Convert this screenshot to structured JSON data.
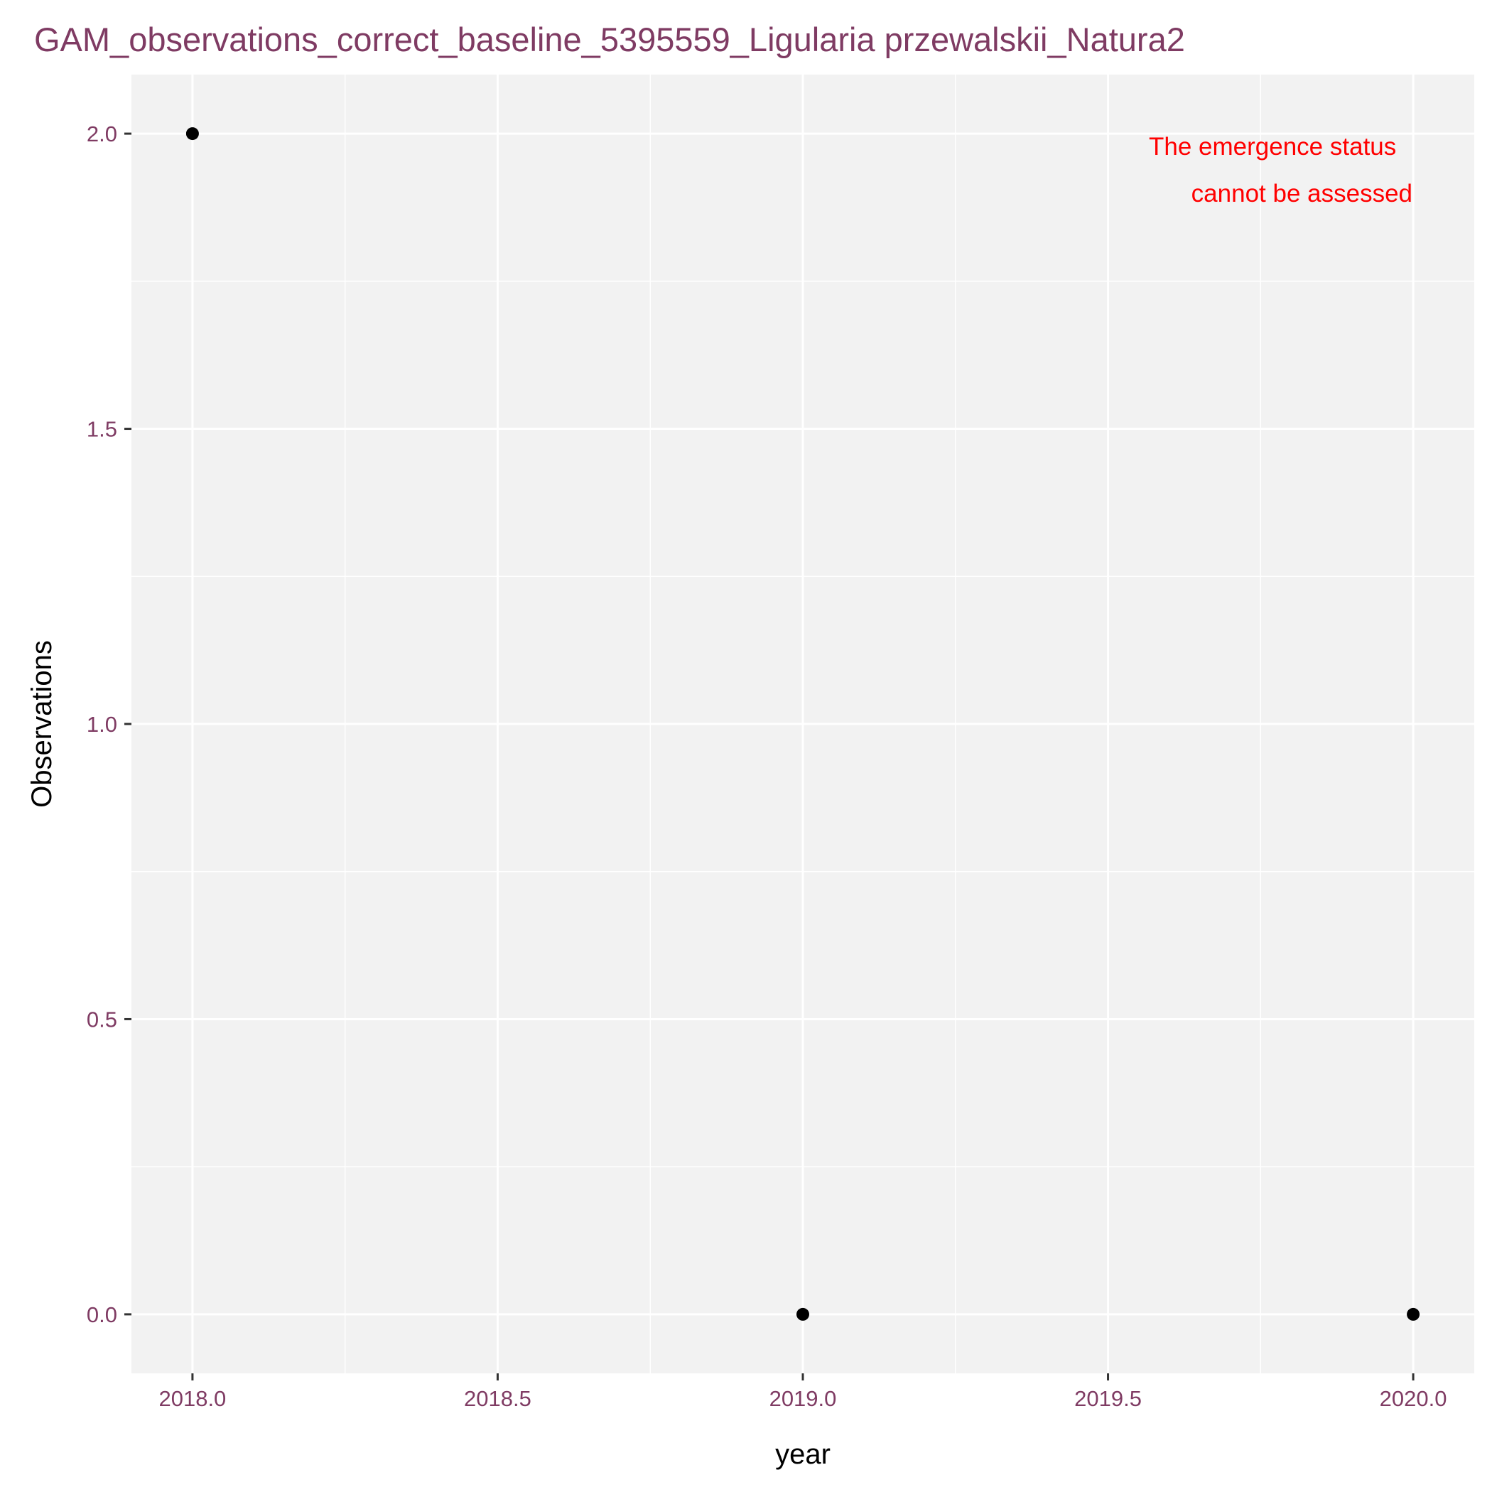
{
  "chart_data": {
    "type": "scatter",
    "title": "GAM_observations_correct_baseline_5395559_Ligularia przewalskii_Natura2",
    "xlabel": "year",
    "ylabel": "Observations",
    "xlim": [
      2017.9,
      2020.1
    ],
    "ylim": [
      -0.1,
      2.1
    ],
    "x_ticks": [
      2018.0,
      2018.5,
      2019.0,
      2019.5,
      2020.0
    ],
    "x_tick_labels": [
      "2018.0",
      "2018.5",
      "2019.0",
      "2019.5",
      "2020.0"
    ],
    "y_ticks": [
      0.0,
      0.5,
      1.0,
      1.5,
      2.0
    ],
    "y_tick_labels": [
      "0.0",
      "0.5",
      "1.0",
      "1.5",
      "2.0"
    ],
    "points": [
      {
        "x": 2018,
        "y": 2
      },
      {
        "x": 2019,
        "y": 0
      },
      {
        "x": 2020,
        "y": 0
      }
    ],
    "annotation": [
      "The emergence status",
      "cannot be assessed"
    ],
    "grid": true,
    "legend": "none",
    "colors": {
      "panel_background": "#f2f2f2",
      "grid": "#ffffff",
      "points": "#000000",
      "annotation": "#ff0000",
      "title": "#7f3b63",
      "tick_labels": "#7f3b63"
    }
  }
}
